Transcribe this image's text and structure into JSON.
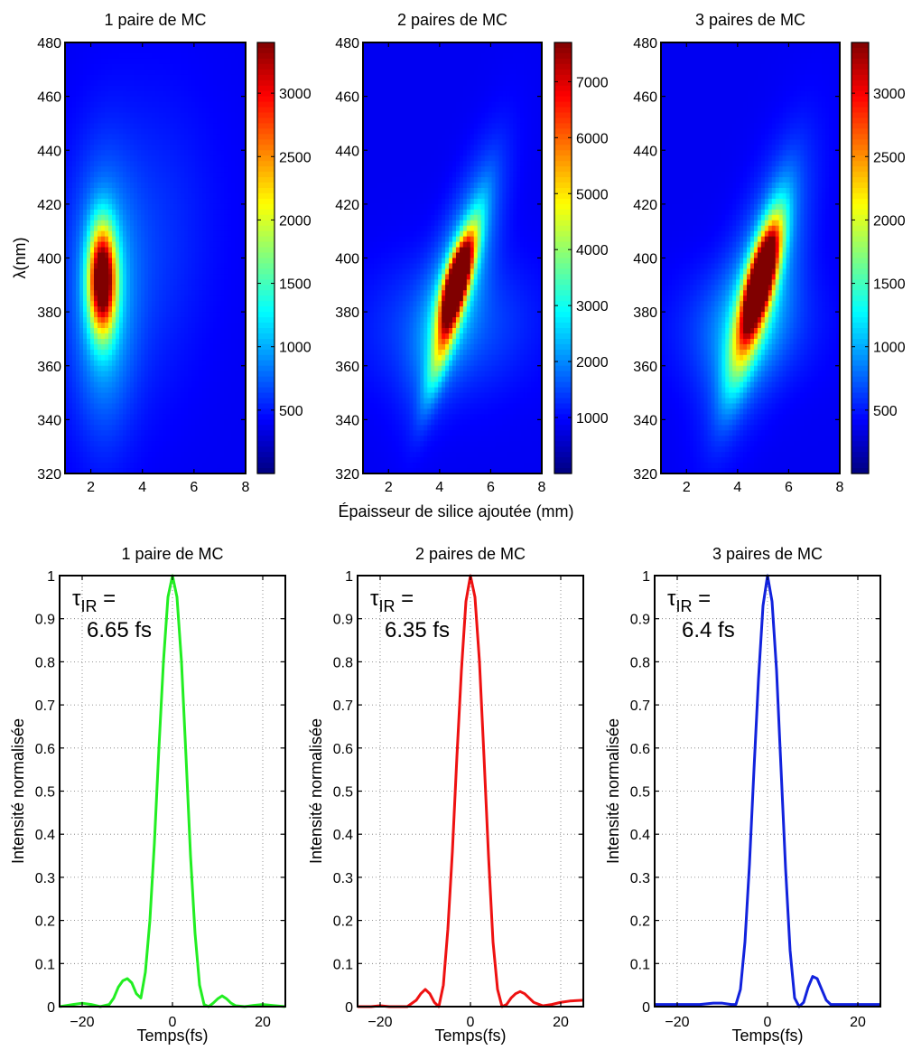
{
  "chart_data": [
    {
      "type": "heatmap",
      "title": "1 paire de MC",
      "xlabel": "",
      "ylabel": "λ(nm)",
      "xlim": [
        1,
        8
      ],
      "ylim": [
        320,
        480
      ],
      "xticks": [
        2,
        4,
        6,
        8
      ],
      "yticks": [
        320,
        340,
        360,
        380,
        400,
        420,
        440,
        460,
        480
      ],
      "colorbar": {
        "min": 0,
        "max": 3400,
        "ticks": [
          500,
          1000,
          1500,
          2000,
          2500,
          3000
        ]
      },
      "colormap": "jet",
      "peaks": [
        {
          "x": 2.45,
          "y": 392,
          "sx": 0.35,
          "sy": 13,
          "amp": 3350,
          "tilt": 0.0
        },
        {
          "x": 2.5,
          "y": 385,
          "sx": 0.8,
          "sy": 32,
          "amp": 650,
          "tilt": 0.0
        },
        {
          "x": 3.6,
          "y": 400,
          "sx": 2.0,
          "sy": 40,
          "amp": 280,
          "tilt": 10
        }
      ]
    },
    {
      "type": "heatmap",
      "title": "2 paires de MC",
      "xlabel": "Épaisseur de silice ajoutée (mm)",
      "ylabel": "",
      "xlim": [
        1,
        8
      ],
      "ylim": [
        320,
        480
      ],
      "xticks": [
        2,
        4,
        6,
        8
      ],
      "yticks": [
        320,
        340,
        360,
        380,
        400,
        420,
        440,
        460,
        480
      ],
      "colorbar": {
        "min": 0,
        "max": 7700,
        "ticks": [
          1000,
          2000,
          3000,
          4000,
          5000,
          6000,
          7000
        ]
      },
      "colormap": "jet",
      "peaks": [
        {
          "x": 4.65,
          "y": 392,
          "sx": 0.3,
          "sy": 10,
          "amp": 7400,
          "tilt": 28
        },
        {
          "x": 4.55,
          "y": 383,
          "sx": 0.28,
          "sy": 20,
          "amp": 4200,
          "tilt": 28
        },
        {
          "x": 4.8,
          "y": 395,
          "sx": 0.7,
          "sy": 28,
          "amp": 1800,
          "tilt": 28
        },
        {
          "x": 4.4,
          "y": 375,
          "sx": 2.2,
          "sy": 18,
          "amp": 900,
          "tilt": 8
        }
      ]
    },
    {
      "type": "heatmap",
      "title": "3 paires de MC",
      "xlabel": "",
      "ylabel": "",
      "xlim": [
        1,
        8
      ],
      "ylim": [
        320,
        480
      ],
      "xticks": [
        2,
        4,
        6,
        8
      ],
      "yticks": [
        320,
        340,
        360,
        380,
        400,
        420,
        440,
        460,
        480
      ],
      "colorbar": {
        "min": 0,
        "max": 3400,
        "ticks": [
          500,
          1000,
          1500,
          2000,
          2500,
          3000
        ]
      },
      "colormap": "jet",
      "peaks": [
        {
          "x": 4.95,
          "y": 393,
          "sx": 0.32,
          "sy": 12,
          "amp": 3350,
          "tilt": 26
        },
        {
          "x": 4.7,
          "y": 385,
          "sx": 0.4,
          "sy": 22,
          "amp": 1800,
          "tilt": 26
        },
        {
          "x": 4.9,
          "y": 390,
          "sx": 0.9,
          "sy": 32,
          "amp": 700,
          "tilt": 26
        },
        {
          "x": 4.3,
          "y": 375,
          "sx": 1.8,
          "sy": 16,
          "amp": 420,
          "tilt": 8
        }
      ]
    },
    {
      "type": "line",
      "title": "1 paire de MC",
      "xlabel": "Temps(fs)",
      "ylabel": "Intensité normalisée",
      "xlim": [
        -25,
        25
      ],
      "ylim": [
        0,
        1
      ],
      "xticks": [
        -20,
        0,
        20
      ],
      "yticks": [
        0,
        0.1,
        0.2,
        0.3,
        0.4,
        0.5,
        0.6,
        0.7,
        0.8,
        0.9,
        1
      ],
      "grid": true,
      "color": "#22ee22",
      "annotation": [
        "τ",
        "IR",
        " =",
        "6.65 fs"
      ],
      "series": [
        {
          "x": [
            -25,
            -22,
            -20,
            -18,
            -16,
            -14,
            -13,
            -12,
            -11,
            -10,
            -9,
            -8,
            -7,
            -6,
            -5,
            -4,
            -3,
            -2,
            -1,
            0,
            1,
            2,
            3,
            4,
            5,
            6,
            7,
            8,
            9,
            10,
            11,
            12,
            13,
            14,
            16,
            18,
            20,
            22,
            25
          ],
          "y": [
            0.0,
            0.005,
            0.008,
            0.005,
            0.0,
            0.005,
            0.02,
            0.045,
            0.06,
            0.065,
            0.055,
            0.03,
            0.02,
            0.08,
            0.2,
            0.38,
            0.6,
            0.8,
            0.95,
            1.0,
            0.95,
            0.8,
            0.58,
            0.35,
            0.17,
            0.05,
            0.005,
            0.0,
            0.008,
            0.018,
            0.025,
            0.018,
            0.008,
            0.002,
            0.0,
            0.003,
            0.005,
            0.003,
            0.0
          ]
        }
      ]
    },
    {
      "type": "line",
      "title": "2 paires de MC",
      "xlabel": "Temps(fs)",
      "ylabel": "Intensité normalisée",
      "xlim": [
        -25,
        25
      ],
      "ylim": [
        0,
        1
      ],
      "xticks": [
        -20,
        0,
        20
      ],
      "yticks": [
        0,
        0.1,
        0.2,
        0.3,
        0.4,
        0.5,
        0.6,
        0.7,
        0.8,
        0.9,
        1
      ],
      "grid": true,
      "color": "#ee1111",
      "annotation": [
        "τ",
        "IR",
        " =",
        "6.35 fs"
      ],
      "series": [
        {
          "x": [
            -25,
            -22,
            -20,
            -18,
            -16,
            -14,
            -12,
            -11,
            -10,
            -9,
            -8,
            -7,
            -6,
            -5,
            -4,
            -3,
            -2,
            -1,
            0,
            1,
            2,
            3,
            4,
            5,
            6,
            7,
            8,
            9,
            10,
            11,
            12,
            13,
            14,
            16,
            18,
            20,
            22,
            25
          ],
          "y": [
            0.0,
            0.0,
            0.002,
            0.0,
            0.0,
            0.0,
            0.015,
            0.03,
            0.04,
            0.03,
            0.01,
            0.0,
            0.05,
            0.18,
            0.36,
            0.58,
            0.78,
            0.94,
            1.0,
            0.95,
            0.8,
            0.58,
            0.35,
            0.15,
            0.04,
            0.0,
            0.005,
            0.02,
            0.03,
            0.035,
            0.03,
            0.02,
            0.01,
            0.002,
            0.005,
            0.01,
            0.013,
            0.015
          ]
        }
      ]
    },
    {
      "type": "line",
      "title": "3 paires de MC",
      "xlabel": "Temps(fs)",
      "ylabel": "Intensité normalisée",
      "xlim": [
        -25,
        25
      ],
      "ylim": [
        0,
        1
      ],
      "xticks": [
        -20,
        0,
        20
      ],
      "yticks": [
        0,
        0.1,
        0.2,
        0.3,
        0.4,
        0.5,
        0.6,
        0.7,
        0.8,
        0.9,
        1
      ],
      "grid": true,
      "color": "#1122dd",
      "annotation": [
        "τ",
        "IR",
        " =",
        "6.4 fs"
      ],
      "series": [
        {
          "x": [
            -25,
            -20,
            -15,
            -12,
            -10,
            -8,
            -7,
            -6,
            -5,
            -4,
            -3,
            -2,
            -1,
            0,
            1,
            2,
            3,
            4,
            5,
            6,
            7,
            8,
            9,
            10,
            11,
            12,
            13,
            14,
            16,
            20,
            25
          ],
          "y": [
            0.005,
            0.005,
            0.005,
            0.008,
            0.008,
            0.005,
            0.005,
            0.04,
            0.15,
            0.33,
            0.55,
            0.76,
            0.93,
            1.0,
            0.94,
            0.78,
            0.55,
            0.32,
            0.13,
            0.02,
            0.0,
            0.01,
            0.045,
            0.07,
            0.065,
            0.04,
            0.015,
            0.005,
            0.005,
            0.005,
            0.005
          ]
        }
      ]
    }
  ]
}
